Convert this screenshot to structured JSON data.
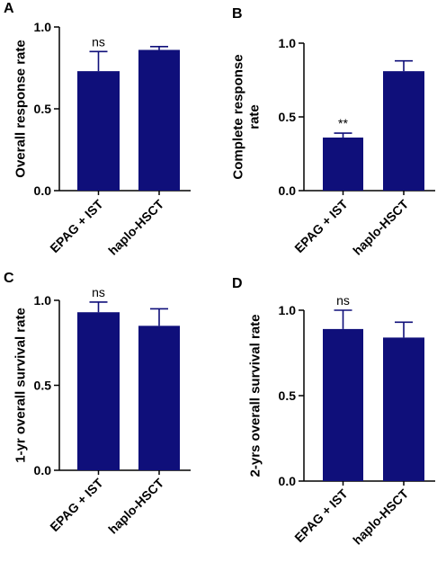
{
  "chart_data": [
    {
      "panel": "A",
      "type": "bar",
      "ylabel": [
        "Overall response rate"
      ],
      "categories": [
        "EPAG + IST",
        "haplo-HSCT"
      ],
      "values": [
        0.73,
        0.86
      ],
      "errors": [
        0.12,
        0.02
      ],
      "annotations": [
        "ns",
        ""
      ],
      "ylim": [
        0,
        1.0
      ],
      "yticks": [
        0.0,
        0.5,
        1.0
      ],
      "ytick_labels": [
        "0.0",
        "0.5",
        "1.0"
      ],
      "bar_color": "#0f0f7a"
    },
    {
      "panel": "B",
      "type": "bar",
      "ylabel": [
        "Complete response",
        "rate"
      ],
      "categories": [
        "EPAG + IST",
        "haplo-HSCT"
      ],
      "values": [
        0.36,
        0.81
      ],
      "errors": [
        0.03,
        0.07
      ],
      "annotations": [
        "**",
        ""
      ],
      "ylim": [
        0,
        1.0
      ],
      "yticks": [
        0.0,
        0.5,
        1.0
      ],
      "ytick_labels": [
        "0.0",
        "0.5",
        "1.0"
      ],
      "bar_color": "#0f0f7a"
    },
    {
      "panel": "C",
      "type": "bar",
      "ylabel": [
        "1-yr overall survival rate"
      ],
      "categories": [
        "EPAG + IST",
        "haplo-HSCT"
      ],
      "values": [
        0.93,
        0.85
      ],
      "errors": [
        0.06,
        0.1
      ],
      "annotations": [
        "ns",
        ""
      ],
      "ylim": [
        0,
        1.0
      ],
      "yticks": [
        0.0,
        0.5,
        1.0
      ],
      "ytick_labels": [
        "0.0",
        "0.5",
        "1.0"
      ],
      "bar_color": "#0f0f7a"
    },
    {
      "panel": "D",
      "type": "bar",
      "ylabel": [
        "2-yrs overall survival rate"
      ],
      "categories": [
        "EPAG + IST",
        "haplo-HSCT"
      ],
      "values": [
        0.89,
        0.84
      ],
      "errors": [
        0.11,
        0.09
      ],
      "annotations": [
        "ns",
        ""
      ],
      "ylim": [
        0,
        1.0
      ],
      "yticks": [
        0.0,
        0.5,
        1.0
      ],
      "ytick_labels": [
        "0.0",
        "0.5",
        "1.0"
      ],
      "bar_color": "#0f0f7a"
    }
  ]
}
